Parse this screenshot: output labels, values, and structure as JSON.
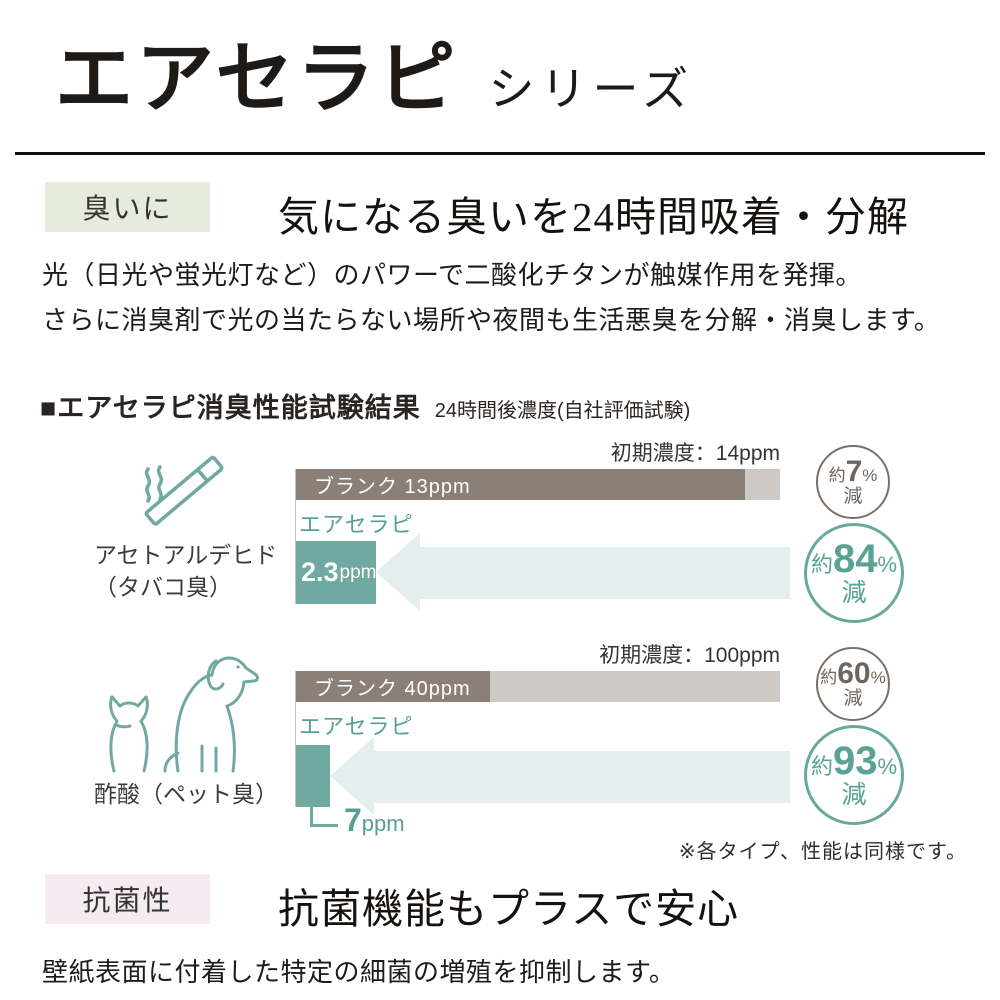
{
  "header": {
    "title": "エアセラピ",
    "subtitle": "シリーズ"
  },
  "odor_section": {
    "badge": "臭いに",
    "heading": "気になる臭いを24時間吸着・分解",
    "body_line1": "光（日光や蛍光灯など）のパワーで二酸化チタンが触媒作用を発揮。",
    "body_line2": "さらに消臭剤で光の当たらない場所や夜間も生活悪臭を分解・消臭します。"
  },
  "results_section": {
    "heading": "■エアセラピ消臭性能試験結果",
    "subheading": "24時間後濃度(自社評価試験)",
    "note": "※各タイプ、性能は同様です。",
    "charts": [
      {
        "icon": "cigarette-icon",
        "substance": "アセトアルデヒド",
        "substance_note": "（タバコ臭）",
        "initial_label": "初期濃度：14ppm",
        "blank_label": "ブランク 13ppm",
        "product_label": "エアセラピ",
        "product_value": "2.3",
        "product_unit": "ppm",
        "blank_circle": {
          "prefix": "約",
          "value": "7",
          "percent": "%",
          "suffix": "減"
        },
        "product_circle": {
          "prefix": "約",
          "value": "84",
          "percent": "%",
          "suffix": "減"
        }
      },
      {
        "icon": "dog-cat-icon",
        "substance": "酢酸（ペット臭）",
        "initial_label": "初期濃度：100ppm",
        "blank_label": "ブランク 40ppm",
        "product_label": "エアセラピ",
        "callout_value": "7",
        "callout_unit": "ppm",
        "blank_circle": {
          "prefix": "約",
          "value": "60",
          "percent": "%",
          "suffix": "減"
        },
        "product_circle": {
          "prefix": "約",
          "value": "93",
          "percent": "%",
          "suffix": "減"
        }
      }
    ]
  },
  "antibacterial_section": {
    "badge": "抗菌性",
    "heading": "抗菌機能もプラスで安心",
    "body": "壁紙表面に付着した特定の細菌の増殖を抑制します。"
  },
  "colors": {
    "teal_bar": "#6fa9a1",
    "teal_text": "#55a094",
    "teal_circle": "#68a89d",
    "blank_bar_dark": "#8a8078",
    "blank_bar_light": "#cfc9c3",
    "arrow_fill": "#e5eeef",
    "gray_circle": "#7a7067",
    "odor_badge_bg": "#e7ebdd",
    "antibacterial_badge_bg": "#f6ebf1"
  },
  "chart_data": {
    "type": "bar",
    "title": "エアセラピ消臭性能試験結果",
    "subtitle": "24時間後濃度(自社評価試験)",
    "note": "※各タイプ、性能は同様です。",
    "orientation": "horizontal",
    "unit": "ppm",
    "groups": [
      {
        "category": "アセトアルデヒド（タバコ臭）",
        "initial_concentration_ppm": 14,
        "series": [
          {
            "name": "ブランク",
            "value_ppm": 13,
            "reduction_label": "約7%減",
            "reduction_percent": 7
          },
          {
            "name": "エアセラピ",
            "value_ppm": 2.3,
            "reduction_label": "約84%減",
            "reduction_percent": 84
          }
        ]
      },
      {
        "category": "酢酸（ペット臭）",
        "initial_concentration_ppm": 100,
        "series": [
          {
            "name": "ブランク",
            "value_ppm": 40,
            "reduction_label": "約60%減",
            "reduction_percent": 60
          },
          {
            "name": "エアセラピ",
            "value_ppm": 7,
            "reduction_label": "約93%減",
            "reduction_percent": 93
          }
        ]
      }
    ]
  }
}
